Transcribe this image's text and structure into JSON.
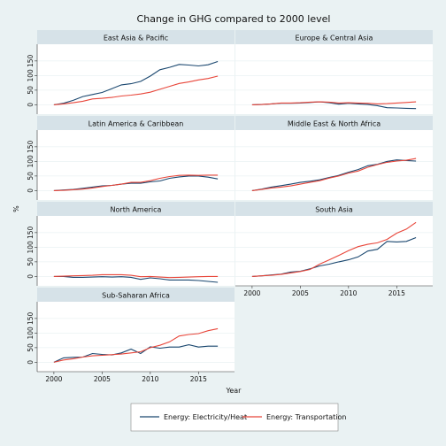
{
  "chart_data": {
    "type": "line",
    "title": "Change in GHG compared to 2000 level",
    "xlabel": "Year",
    "ylabel": "%",
    "x_ticks": [
      2000,
      2005,
      2010,
      2015
    ],
    "y_ticks": [
      0,
      50,
      100,
      150
    ],
    "xlim": [
      1999,
      2018
    ],
    "ylim": [
      -20,
      195
    ],
    "years": [
      2000,
      2001,
      2002,
      2003,
      2004,
      2005,
      2006,
      2007,
      2008,
      2009,
      2010,
      2011,
      2012,
      2013,
      2014,
      2015,
      2016,
      2017
    ],
    "series_names": [
      "Energy: Electricity/Heat",
      "Energy: Transportation"
    ],
    "colors": {
      "electricity": "#1a476f",
      "transport": "#e8463a",
      "strip": "#d6e2e8",
      "panel": "#ffffff",
      "background": "#eaf2f3"
    },
    "legend_position": "bottom",
    "panels": [
      {
        "name": "East Asia & Pacific",
        "electricity": [
          0,
          5,
          15,
          28,
          35,
          42,
          55,
          68,
          72,
          80,
          98,
          120,
          128,
          138,
          136,
          133,
          137,
          148
        ],
        "transport": [
          0,
          3,
          7,
          12,
          20,
          22,
          25,
          30,
          33,
          37,
          43,
          53,
          63,
          73,
          78,
          85,
          90,
          98
        ]
      },
      {
        "name": "Europe & Central Asia",
        "electricity": [
          0,
          1,
          3,
          5,
          5,
          6,
          8,
          10,
          7,
          2,
          5,
          3,
          1,
          -3,
          -10,
          -11,
          -12,
          -13
        ],
        "transport": [
          0,
          1,
          3,
          6,
          6,
          7,
          9,
          10,
          9,
          6,
          7,
          6,
          5,
          3,
          4,
          6,
          8,
          10
        ]
      },
      {
        "name": "Latin America & Caribbean",
        "electricity": [
          0,
          2,
          4,
          8,
          12,
          16,
          18,
          22,
          25,
          25,
          30,
          33,
          42,
          47,
          50,
          50,
          46,
          40
        ],
        "transport": [
          0,
          1,
          3,
          5,
          9,
          14,
          18,
          22,
          28,
          28,
          34,
          42,
          48,
          52,
          53,
          52,
          53,
          53
        ]
      },
      {
        "name": "Middle East & North Africa",
        "electricity": [
          0,
          5,
          12,
          17,
          22,
          28,
          32,
          37,
          45,
          52,
          63,
          72,
          85,
          90,
          100,
          105,
          103,
          101
        ],
        "transport": [
          0,
          4,
          9,
          12,
          16,
          22,
          28,
          34,
          43,
          50,
          60,
          67,
          80,
          89,
          97,
          101,
          104,
          110
        ]
      },
      {
        "name": "North America",
        "electricity": [
          0,
          0,
          -3,
          -3,
          -2,
          -1,
          -2,
          -1,
          -3,
          -10,
          -5,
          -8,
          -12,
          -12,
          -12,
          -14,
          -17,
          -20
        ],
        "transport": [
          0,
          1,
          2,
          3,
          4,
          6,
          6,
          6,
          4,
          -1,
          0,
          -2,
          -4,
          -3,
          -2,
          -1,
          0,
          0
        ]
      },
      {
        "name": "South Asia",
        "electricity": [
          0,
          2,
          5,
          8,
          15,
          18,
          26,
          36,
          42,
          50,
          57,
          67,
          87,
          93,
          120,
          118,
          120,
          133
        ],
        "transport": [
          0,
          2,
          4,
          7,
          12,
          17,
          24,
          42,
          57,
          72,
          88,
          102,
          110,
          115,
          127,
          148,
          162,
          185
        ]
      },
      {
        "name": "Sub-Saharan Africa",
        "electricity": [
          0,
          15,
          17,
          18,
          30,
          27,
          25,
          32,
          45,
          30,
          53,
          48,
          52,
          52,
          60,
          52,
          55,
          55
        ],
        "transport": [
          0,
          8,
          12,
          18,
          22,
          24,
          26,
          28,
          32,
          36,
          50,
          58,
          70,
          90,
          95,
          98,
          108,
          115
        ]
      }
    ]
  }
}
